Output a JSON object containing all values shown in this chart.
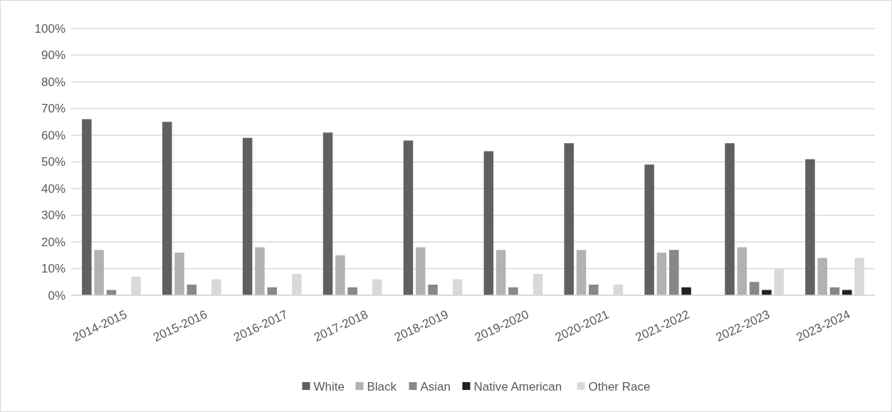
{
  "chart_data": {
    "type": "bar",
    "categories": [
      "2014-2015",
      "2015-2016",
      "2016-2017",
      "2017-2018",
      "2018-2019",
      "2019-2020",
      "2020-2021",
      "2021-2022",
      "2022-2023",
      "2023-2024"
    ],
    "series": [
      {
        "name": "White",
        "color": "#606060",
        "values": [
          66,
          65,
          59,
          61,
          58,
          54,
          57,
          49,
          57,
          51
        ]
      },
      {
        "name": "Black",
        "color": "#b2b2b2",
        "values": [
          17,
          16,
          18,
          15,
          18,
          17,
          17,
          16,
          18,
          14
        ]
      },
      {
        "name": "Asian",
        "color": "#888888",
        "values": [
          2,
          4,
          3,
          3,
          4,
          3,
          4,
          17,
          5,
          3
        ]
      },
      {
        "name": "Native American",
        "color": "#222222",
        "values": [
          0,
          0,
          0,
          0,
          0,
          0,
          0,
          3,
          2,
          2
        ]
      },
      {
        "name": "Other Race",
        "color": "#d9d9d9",
        "values": [
          7,
          6,
          8,
          6,
          6,
          8,
          4,
          0,
          10,
          14
        ]
      }
    ],
    "ylim": [
      0,
      100
    ],
    "yticks": [
      {
        "value": 0,
        "label": "0%"
      },
      {
        "value": 10,
        "label": "10%"
      },
      {
        "value": 20,
        "label": "20%"
      },
      {
        "value": 30,
        "label": "30%"
      },
      {
        "value": 40,
        "label": "40%"
      },
      {
        "value": 50,
        "label": "50%"
      },
      {
        "value": 60,
        "label": "60%"
      },
      {
        "value": 70,
        "label": "70%"
      },
      {
        "value": 80,
        "label": "80%"
      },
      {
        "value": 90,
        "label": "90%"
      },
      {
        "value": 100,
        "label": "100%"
      }
    ],
    "grid": "y",
    "legend": "bottom"
  }
}
